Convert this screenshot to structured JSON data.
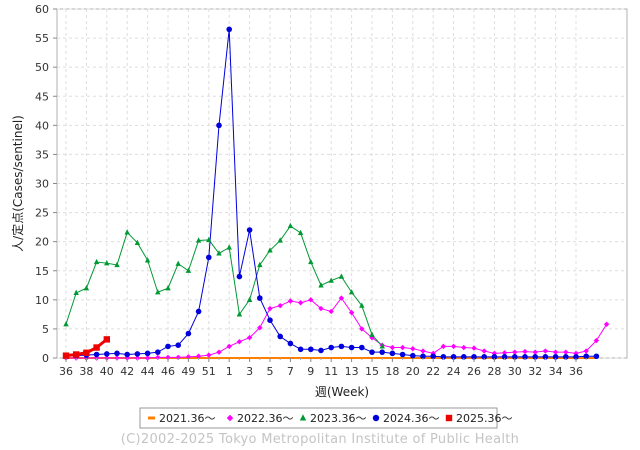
{
  "credit": "(C)2002-2025 Tokyo Metropolitan Institute of Public Health",
  "chart_data": {
    "type": "line",
    "xlabel": "週(Week)",
    "ylabel": "人/定点(Cases/sentinel)",
    "ylim": [
      0,
      60
    ],
    "yticks": [
      0,
      5,
      10,
      15,
      20,
      25,
      30,
      35,
      40,
      45,
      50,
      55,
      60
    ],
    "xtick_labels": [
      "36",
      "38",
      "40",
      "42",
      "44",
      "46",
      "49",
      "51",
      "1",
      "3",
      "5",
      "7",
      "9",
      "11",
      "13",
      "15",
      "18",
      "20",
      "22",
      "24",
      "26",
      "28",
      "30",
      "32",
      "34",
      "36"
    ],
    "grid": true,
    "legend_position": "bottom",
    "colors": {
      "s2021": "#ff8000",
      "s2022": "#ff00ff",
      "s2023": "#009933",
      "s2024": "#0000dd",
      "s2025": "#ee0000"
    },
    "series": [
      {
        "name": "2021.36〜",
        "marker": "square",
        "color": "#ff8000",
        "values": [
          0,
          0,
          0,
          0,
          0,
          0,
          0,
          0,
          0,
          0,
          0,
          0,
          0,
          0,
          0,
          0,
          0,
          0,
          0,
          0,
          0,
          0,
          0,
          0,
          0,
          0,
          0,
          0,
          0,
          0,
          0,
          0,
          0,
          0,
          0,
          0,
          0,
          0,
          0,
          0,
          0,
          0,
          0,
          0,
          0,
          0,
          0,
          0,
          0,
          0,
          0,
          0,
          0
        ]
      },
      {
        "name": "2022.36〜",
        "marker": "diamond",
        "color": "#ff00ff",
        "values": [
          0,
          0,
          0,
          0,
          0,
          0,
          0,
          0,
          0,
          0.1,
          0.1,
          0.1,
          0.2,
          0.3,
          0.5,
          1.0,
          2.0,
          2.8,
          3.5,
          5.2,
          8.5,
          9.0,
          9.8,
          9.5,
          10.0,
          8.5,
          8.0,
          10.3,
          7.8,
          5.0,
          3.5,
          2.2,
          1.8,
          1.8,
          1.6,
          1.2,
          0.8,
          2.0,
          2.0,
          1.8,
          1.7,
          1.2,
          0.8,
          0.9,
          1.0,
          1.1,
          1.0,
          1.2,
          1.0,
          1.0,
          0.8,
          1.2,
          3.0,
          5.8
        ]
      },
      {
        "name": "2023.36〜",
        "marker": "triangle",
        "color": "#009933",
        "values": [
          5.8,
          11.2,
          12.0,
          16.5,
          16.3,
          16.0,
          21.6,
          19.8,
          16.8,
          11.3,
          12.0,
          16.2,
          15.0,
          20.2,
          20.3,
          18.0,
          19.0,
          7.5,
          10.0,
          16.0,
          18.5,
          20.2,
          22.7,
          21.5,
          16.5,
          12.5,
          13.3,
          14.0,
          11.3,
          9.0,
          4.0,
          2.0
        ]
      },
      {
        "name": "2024.36〜",
        "marker": "circle",
        "color": "#0000dd",
        "values": [
          0.3,
          0.4,
          0.5,
          0.6,
          0.7,
          0.8,
          0.6,
          0.7,
          0.8,
          1.0,
          2.0,
          2.2,
          4.2,
          8.0,
          17.3,
          40.0,
          56.5,
          14.0,
          22.0,
          10.3,
          6.5,
          3.7,
          2.5,
          1.5,
          1.5,
          1.3,
          1.8,
          2.0,
          1.8,
          1.8,
          1.0,
          1.0,
          0.8,
          0.6,
          0.4,
          0.3,
          0.3,
          0.2,
          0.2,
          0.2,
          0.2,
          0.2,
          0.2,
          0.2,
          0.2,
          0.2,
          0.2,
          0.2,
          0.2,
          0.2,
          0.2,
          0.3,
          0.3
        ]
      },
      {
        "name": "2025.36〜",
        "marker": "square",
        "color": "#ee0000",
        "values": [
          0.4,
          0.6,
          0.9,
          1.8,
          3.2
        ]
      }
    ]
  }
}
